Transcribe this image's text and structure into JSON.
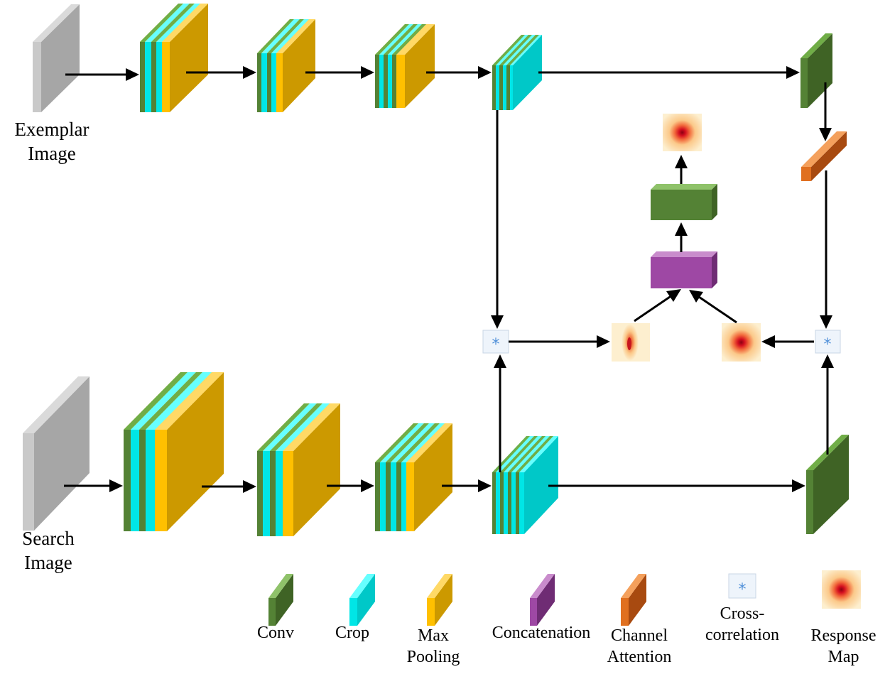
{
  "colors": {
    "conv": "#548235",
    "crop": "#00e6e6",
    "pool": "#cc9900",
    "pool_light": "#ffc000",
    "concat": "#9e48a4",
    "attention": "#d0641c",
    "input_gray": "#b3b3b3",
    "arrow": "#000000",
    "xcorr": "#4f8fd8"
  },
  "labels": {
    "exemplar_line1": "Exemplar",
    "exemplar_line2": "Image",
    "search_line1": "Search",
    "search_line2": "Image"
  },
  "xcorr_symbol": "*",
  "legend": {
    "conv": "Conv",
    "crop": "Crop",
    "pool_line1": "Max",
    "pool_line2": "Pooling",
    "concat": "Concatenation",
    "attention_line1": "Channel",
    "attention_line2": "Attention",
    "xcorr_line1": "Cross-",
    "xcorr_line2": "correlation",
    "response_line1": "Response",
    "response_line2": "Map"
  }
}
